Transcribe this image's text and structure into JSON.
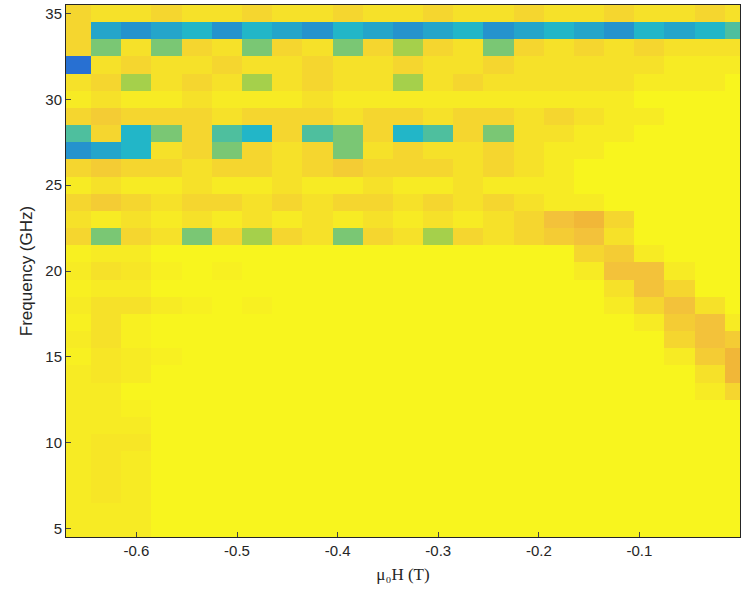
{
  "chart_data": {
    "type": "heatmap",
    "xlabel": "μ₀H (T)",
    "ylabel": "Frequency (GHz)",
    "xlim": [
      -0.67,
      0
    ],
    "ylim": [
      4.5,
      35.5
    ],
    "xticks": [
      -0.6,
      -0.5,
      -0.4,
      -0.3,
      -0.2,
      -0.1
    ],
    "yticks": [
      5,
      10,
      15,
      20,
      25,
      30,
      35
    ],
    "zlim": [
      -1,
      1
    ],
    "x": [
      -0.66,
      -0.63,
      -0.6,
      -0.57,
      -0.54,
      -0.51,
      -0.48,
      -0.45,
      -0.42,
      -0.39,
      -0.36,
      -0.33,
      -0.3,
      -0.27,
      -0.24,
      -0.21,
      -0.18,
      -0.15,
      -0.12,
      -0.09,
      -0.06,
      -0.03,
      0
    ],
    "y": [
      5,
      6,
      7,
      8,
      9,
      10,
      11,
      12,
      13,
      14,
      15,
      16,
      17,
      18,
      19,
      20,
      21,
      22,
      23,
      24,
      25,
      26,
      27,
      28,
      29,
      30,
      31,
      32,
      33,
      34,
      35
    ],
    "z": [
      [
        0.1,
        0.1,
        0.1,
        0,
        0,
        0,
        0,
        0,
        0,
        0,
        0,
        0,
        0,
        0,
        0,
        0,
        0,
        0,
        0,
        0,
        0,
        0,
        0
      ],
      [
        0.1,
        0.1,
        0.1,
        0,
        0,
        0,
        0,
        0,
        0,
        0,
        0,
        0,
        0,
        0,
        0,
        0,
        0,
        0,
        0,
        0,
        0,
        0,
        0
      ],
      [
        0.1,
        0.15,
        0.1,
        0,
        0,
        0,
        0,
        0,
        0,
        0,
        0,
        0,
        0,
        0,
        0,
        0,
        0,
        0,
        0,
        0,
        0,
        0,
        0
      ],
      [
        0.1,
        0.15,
        0.1,
        0,
        0,
        0,
        0,
        0,
        0,
        0,
        0,
        0,
        0,
        0,
        0,
        0,
        0,
        0,
        0,
        0,
        0,
        0,
        0
      ],
      [
        0.1,
        0.15,
        0.1,
        0,
        0,
        0,
        0,
        0,
        0,
        0,
        0,
        0,
        0,
        0,
        0,
        0,
        0,
        0,
        0,
        0,
        0,
        0,
        0
      ],
      [
        0.1,
        0.15,
        0.15,
        0,
        0,
        0,
        0,
        0,
        0,
        0,
        0,
        0,
        0,
        0,
        0,
        0,
        0,
        0,
        0,
        0,
        0,
        0,
        0
      ],
      [
        0.1,
        0.1,
        0.1,
        0,
        0,
        0,
        0,
        0,
        0,
        0,
        0,
        0,
        0,
        0,
        0,
        0,
        0,
        0,
        0,
        0,
        0,
        0,
        0
      ],
      [
        0.1,
        0.1,
        0.05,
        0,
        0,
        0,
        0,
        0,
        0,
        0,
        0,
        0,
        0,
        0,
        0,
        0,
        0,
        0,
        0,
        0,
        0,
        0,
        0
      ],
      [
        0.1,
        0.1,
        0,
        0,
        0,
        0,
        0,
        0,
        0,
        0,
        0,
        0,
        0,
        0,
        0,
        0,
        0,
        0,
        0,
        0,
        0,
        0.1,
        0.3
      ],
      [
        0.1,
        0.15,
        0.1,
        0,
        0,
        0,
        0,
        0,
        0,
        0,
        0,
        0,
        0,
        0,
        0,
        0,
        0,
        0,
        0,
        0,
        0,
        0.2,
        0.6
      ],
      [
        0.05,
        0.15,
        0.1,
        0.05,
        0,
        0,
        0,
        0,
        0,
        0,
        0,
        0,
        0,
        0,
        0,
        0,
        0,
        0,
        0,
        0,
        0.1,
        0.4,
        0.6
      ],
      [
        0.1,
        0.2,
        0.05,
        0,
        0,
        0,
        0,
        0,
        0,
        0,
        0,
        0,
        0,
        0,
        0,
        0,
        0,
        0,
        0,
        0,
        0.3,
        0.5,
        0.4
      ],
      [
        0.05,
        0.2,
        0.05,
        0,
        0,
        0,
        0,
        0,
        0,
        0,
        0,
        0,
        0,
        0,
        0,
        0,
        0,
        0,
        0,
        0.1,
        0.4,
        0.5,
        0.1
      ],
      [
        0.1,
        0.2,
        0.2,
        0.1,
        0.05,
        0,
        0.05,
        0,
        0,
        0,
        0,
        0,
        0,
        0,
        0,
        0,
        0,
        0,
        0.1,
        0.3,
        0.5,
        0.2,
        0
      ],
      [
        0.05,
        0.1,
        0.1,
        0,
        0,
        0,
        0,
        0,
        0,
        0,
        0,
        0,
        0,
        0,
        0,
        0,
        0,
        0,
        0.2,
        0.5,
        0.3,
        0,
        0
      ],
      [
        0.1,
        0.2,
        0.15,
        0.05,
        0,
        0.05,
        0,
        0,
        0,
        0,
        0,
        0,
        0,
        0,
        0,
        0,
        0,
        0.1,
        0.5,
        0.5,
        0.1,
        0,
        0
      ],
      [
        0.05,
        0.1,
        0.1,
        0,
        0,
        0,
        0,
        0,
        0,
        0,
        0,
        0,
        0,
        0,
        0,
        0,
        0,
        0.3,
        0.4,
        0.1,
        0,
        0,
        0
      ],
      [
        0.3,
        -0.3,
        0.3,
        0.2,
        -0.3,
        0.3,
        -0.2,
        0.3,
        0.2,
        -0.3,
        0.3,
        0.2,
        -0.2,
        0.3,
        0.2,
        0.3,
        0.4,
        0.5,
        0.2,
        0,
        0,
        0,
        0
      ],
      [
        0.2,
        0.1,
        0.2,
        0.1,
        0.2,
        0.1,
        0.2,
        0.1,
        0.2,
        0.1,
        0.2,
        0.1,
        0.2,
        0.1,
        0.2,
        0.3,
        0.5,
        0.6,
        0.3,
        0,
        0,
        0,
        0
      ],
      [
        0.3,
        0.4,
        0.3,
        0.2,
        0.3,
        0.3,
        0.2,
        0.3,
        0.2,
        0.3,
        0.3,
        0.2,
        0.3,
        0.2,
        0.3,
        0.2,
        0.1,
        0.1,
        0,
        0,
        0,
        0,
        0
      ],
      [
        0.1,
        0.2,
        0.1,
        0.1,
        0.2,
        0.1,
        0.1,
        0.2,
        0.1,
        0.1,
        0.2,
        0.1,
        0.1,
        0.2,
        0.1,
        0.1,
        0.1,
        0,
        0,
        0,
        0,
        0,
        0
      ],
      [
        0.3,
        0.4,
        0.3,
        0.3,
        0.2,
        0.3,
        0.3,
        0.2,
        0.3,
        0.4,
        0.3,
        0.3,
        0.3,
        0.2,
        0.3,
        0.2,
        0.1,
        0,
        0,
        0,
        0,
        0,
        0
      ],
      [
        -0.7,
        -0.6,
        -0.5,
        0.2,
        0.3,
        -0.3,
        0.3,
        0.2,
        0.3,
        -0.3,
        0.2,
        0.3,
        0.2,
        0.2,
        0.3,
        0.2,
        0.1,
        0.1,
        0,
        0,
        0,
        0,
        0
      ],
      [
        -0.4,
        0.3,
        -0.5,
        -0.3,
        0.3,
        -0.4,
        -0.5,
        0.3,
        -0.4,
        -0.3,
        0.3,
        -0.5,
        -0.4,
        0.3,
        -0.3,
        0.2,
        0.2,
        0.1,
        0.1,
        0,
        0,
        0,
        0
      ],
      [
        0.3,
        0.4,
        0.3,
        0.3,
        0.3,
        0.2,
        0.3,
        0.3,
        0.3,
        0.2,
        0.3,
        0.3,
        0.2,
        0.3,
        0.3,
        0.2,
        0.3,
        0.2,
        0.1,
        0.1,
        0,
        0,
        0
      ],
      [
        0.1,
        0.2,
        0.1,
        0.1,
        0.2,
        0.1,
        0.1,
        0.1,
        0.2,
        0.1,
        0.1,
        0.1,
        0.1,
        0.1,
        0.1,
        0.1,
        0.1,
        0.1,
        0.1,
        0,
        0,
        0,
        0
      ],
      [
        0.2,
        0.3,
        -0.2,
        0.2,
        0.3,
        0.2,
        -0.2,
        0.2,
        0.3,
        0.2,
        0.2,
        -0.2,
        0.2,
        0.3,
        0.2,
        0.2,
        0.2,
        0.2,
        0.2,
        0.1,
        0.1,
        0.1,
        0
      ],
      [
        -0.9,
        0.2,
        0.3,
        0.2,
        0.2,
        0.3,
        0.2,
        0.2,
        0.3,
        0.2,
        0.2,
        0.3,
        0.2,
        0.2,
        0.3,
        0.2,
        0.2,
        0.2,
        0.2,
        0.2,
        0.1,
        0.1,
        0.1
      ],
      [
        0.3,
        -0.3,
        0.2,
        -0.3,
        0.3,
        0.2,
        -0.3,
        0.3,
        0.2,
        -0.3,
        0.3,
        -0.2,
        0.3,
        0.2,
        -0.3,
        0.3,
        0.2,
        0.3,
        0.2,
        0.3,
        0.2,
        0.2,
        0.2
      ],
      [
        0.3,
        -0.6,
        -0.7,
        -0.6,
        -0.5,
        -0.7,
        -0.5,
        -0.6,
        -0.7,
        -0.5,
        -0.6,
        -0.7,
        -0.6,
        -0.5,
        -0.7,
        -0.6,
        -0.5,
        -0.6,
        -0.7,
        -0.5,
        -0.6,
        -0.5,
        -0.4
      ],
      [
        0.3,
        0.2,
        0.2,
        0.3,
        0.2,
        0.2,
        0.3,
        0.2,
        0.2,
        0.3,
        0.2,
        0.2,
        0.3,
        0.2,
        0.2,
        0.3,
        0.2,
        0.2,
        0.3,
        0.2,
        0.2,
        0.3,
        0.2
      ]
    ]
  }
}
